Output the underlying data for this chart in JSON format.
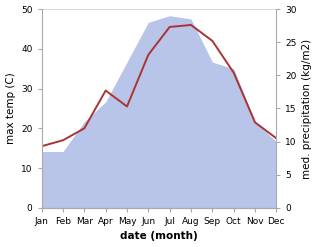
{
  "months": [
    "Jan",
    "Feb",
    "Mar",
    "Apr",
    "May",
    "Jun",
    "Jul",
    "Aug",
    "Sep",
    "Oct",
    "Nov",
    "Dec"
  ],
  "max_temp": [
    15.5,
    17.0,
    20.0,
    29.5,
    25.5,
    38.5,
    45.5,
    46.0,
    42.0,
    34.0,
    21.5,
    17.5
  ],
  "precipitation": [
    8.5,
    8.5,
    13.0,
    16.0,
    22.0,
    28.0,
    29.0,
    28.5,
    22.0,
    21.0,
    13.0,
    10.0
  ],
  "temp_ylim": [
    0,
    50
  ],
  "precip_ylim": [
    0,
    30
  ],
  "temp_color": "#aa3333",
  "fill_color": "#b8c4e8",
  "fill_alpha": 1.0,
  "xlabel": "date (month)",
  "ylabel_left": "max temp (C)",
  "ylabel_right": "med. precipitation (kg/m2)",
  "bg_color": "#ffffff",
  "label_fontsize": 7.5,
  "tick_fontsize": 6.5
}
